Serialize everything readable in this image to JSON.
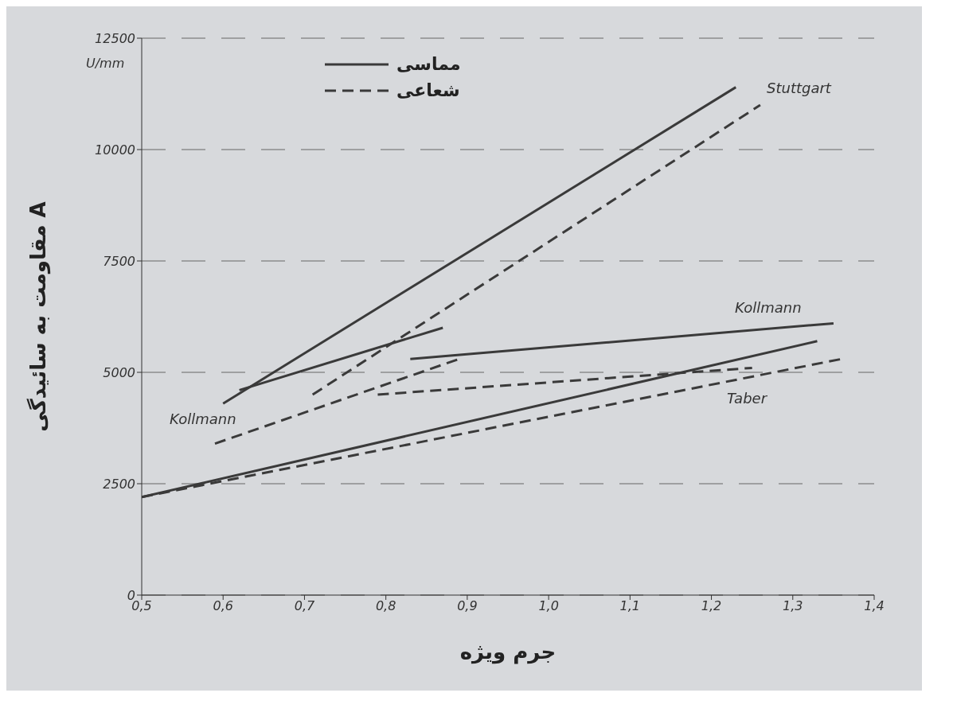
{
  "chart_data": {
    "type": "line",
    "xlabel": "جرم ویژه",
    "ylabel": "مقاومت به سائیدگی A",
    "xlim": [
      0.5,
      1.4
    ],
    "xticks": [
      {
        "value": 0.5,
        "label": "0,5"
      },
      {
        "value": 0.6,
        "label": "0,6"
      },
      {
        "value": 0.7,
        "label": "0,7"
      },
      {
        "value": 0.8,
        "label": "0,8"
      },
      {
        "value": 0.9,
        "label": "0,9"
      },
      {
        "value": 1.0,
        "label": "1,0"
      },
      {
        "value": 1.1,
        "label": "1,1"
      },
      {
        "value": 1.2,
        "label": "1,2"
      },
      {
        "value": 1.3,
        "label": "1,3"
      },
      {
        "value": 1.4,
        "label": "1,4"
      }
    ],
    "ylim": [
      0,
      12500
    ],
    "yticks": [
      0,
      2500,
      5000,
      7500,
      10000,
      12500
    ],
    "grid": "y",
    "legend": "top",
    "marker": "none",
    "series": [
      {
        "name": "مماسی",
        "color": "#3a3a3a",
        "line_style": "solid",
        "x": [
          0.6,
          1.23
        ],
        "values": [
          4300,
          11400
        ]
      },
      {
        "name": "شعاعی",
        "color": "#3a3a3a",
        "line_style": "dashed",
        "x": [
          0.71,
          1.26
        ],
        "values": [
          4500,
          11000
        ]
      },
      {
        "color": "#3a3a3a",
        "line_style": "solid",
        "x": [
          0.62,
          0.87
        ],
        "values": [
          4600,
          6000
        ]
      },
      {
        "color": "#3a3a3a",
        "line_style": "dashed",
        "x": [
          0.59,
          0.89
        ],
        "values": [
          3400,
          5300
        ]
      },
      {
        "color": "#3a3a3a",
        "line_style": "solid",
        "x": [
          0.83,
          1.35
        ],
        "values": [
          5300,
          6100
        ]
      },
      {
        "color": "#3a3a3a",
        "line_style": "dashed",
        "x": [
          0.79,
          1.25
        ],
        "values": [
          4500,
          5100
        ]
      },
      {
        "color": "#3a3a3a",
        "line_style": "solid",
        "x": [
          0.5,
          1.33
        ],
        "values": [
          2200,
          5700
        ]
      },
      {
        "color": "#3a3a3a",
        "line_style": "dashed",
        "x": [
          0.5,
          1.36
        ],
        "values": [
          2200,
          5300
        ]
      }
    ],
    "annotations": [
      "U/mm",
      "Stuttgart",
      "Kollmann",
      "Kollmann",
      "Taber"
    ]
  }
}
